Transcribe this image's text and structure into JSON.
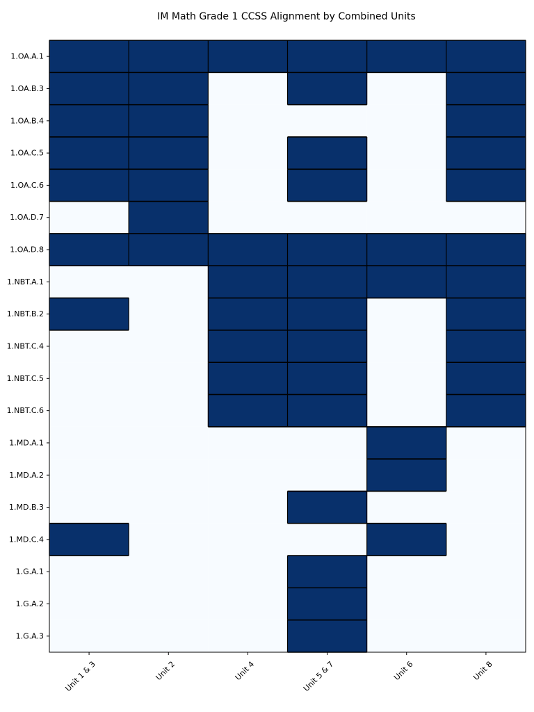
{
  "chart_data": {
    "type": "heatmap",
    "title": "IM Math Grade 1 CCSS Alignment by Combined Units",
    "xlabel": "",
    "ylabel": "",
    "x_categories": [
      "Unit 1 & 3",
      "Unit 2",
      "Unit 4",
      "Unit 5 & 7",
      "Unit 6",
      "Unit 8"
    ],
    "y_categories": [
      "1.OA.A.1",
      "1.OA.B.3",
      "1.OA.B.4",
      "1.OA.C.5",
      "1.OA.C.6",
      "1.OA.D.7",
      "1.OA.D.8",
      "1.NBT.A.1",
      "1.NBT.B.2",
      "1.NBT.C.4",
      "1.NBT.C.5",
      "1.NBT.C.6",
      "1.MD.A.1",
      "1.MD.A.2",
      "1.MD.B.3",
      "1.MD.C.4",
      "1.G.A.1",
      "1.G.A.2",
      "1.G.A.3"
    ],
    "values": [
      [
        1,
        1,
        1,
        1,
        1,
        1
      ],
      [
        1,
        1,
        0,
        1,
        0,
        1
      ],
      [
        1,
        1,
        0,
        0,
        0,
        1
      ],
      [
        1,
        1,
        0,
        1,
        0,
        1
      ],
      [
        1,
        1,
        0,
        1,
        0,
        1
      ],
      [
        0,
        1,
        0,
        0,
        0,
        0
      ],
      [
        1,
        1,
        1,
        1,
        1,
        1
      ],
      [
        0,
        0,
        1,
        1,
        1,
        1
      ],
      [
        1,
        0,
        1,
        1,
        0,
        1
      ],
      [
        0,
        0,
        1,
        1,
        0,
        1
      ],
      [
        0,
        0,
        1,
        1,
        0,
        1
      ],
      [
        0,
        0,
        1,
        1,
        0,
        1
      ],
      [
        0,
        0,
        0,
        0,
        1,
        0
      ],
      [
        0,
        0,
        0,
        0,
        1,
        0
      ],
      [
        0,
        0,
        0,
        1,
        0,
        0
      ],
      [
        1,
        0,
        0,
        0,
        1,
        0
      ],
      [
        0,
        0,
        0,
        1,
        0,
        0
      ],
      [
        0,
        0,
        0,
        1,
        0,
        0
      ],
      [
        0,
        0,
        0,
        1,
        0,
        0
      ]
    ],
    "colors": {
      "aligned": "#08306b",
      "not_aligned": "#f7fbff",
      "cell_border": "#000000",
      "axis": "#000000",
      "text": "#000000"
    },
    "legend": false,
    "grid": false
  }
}
